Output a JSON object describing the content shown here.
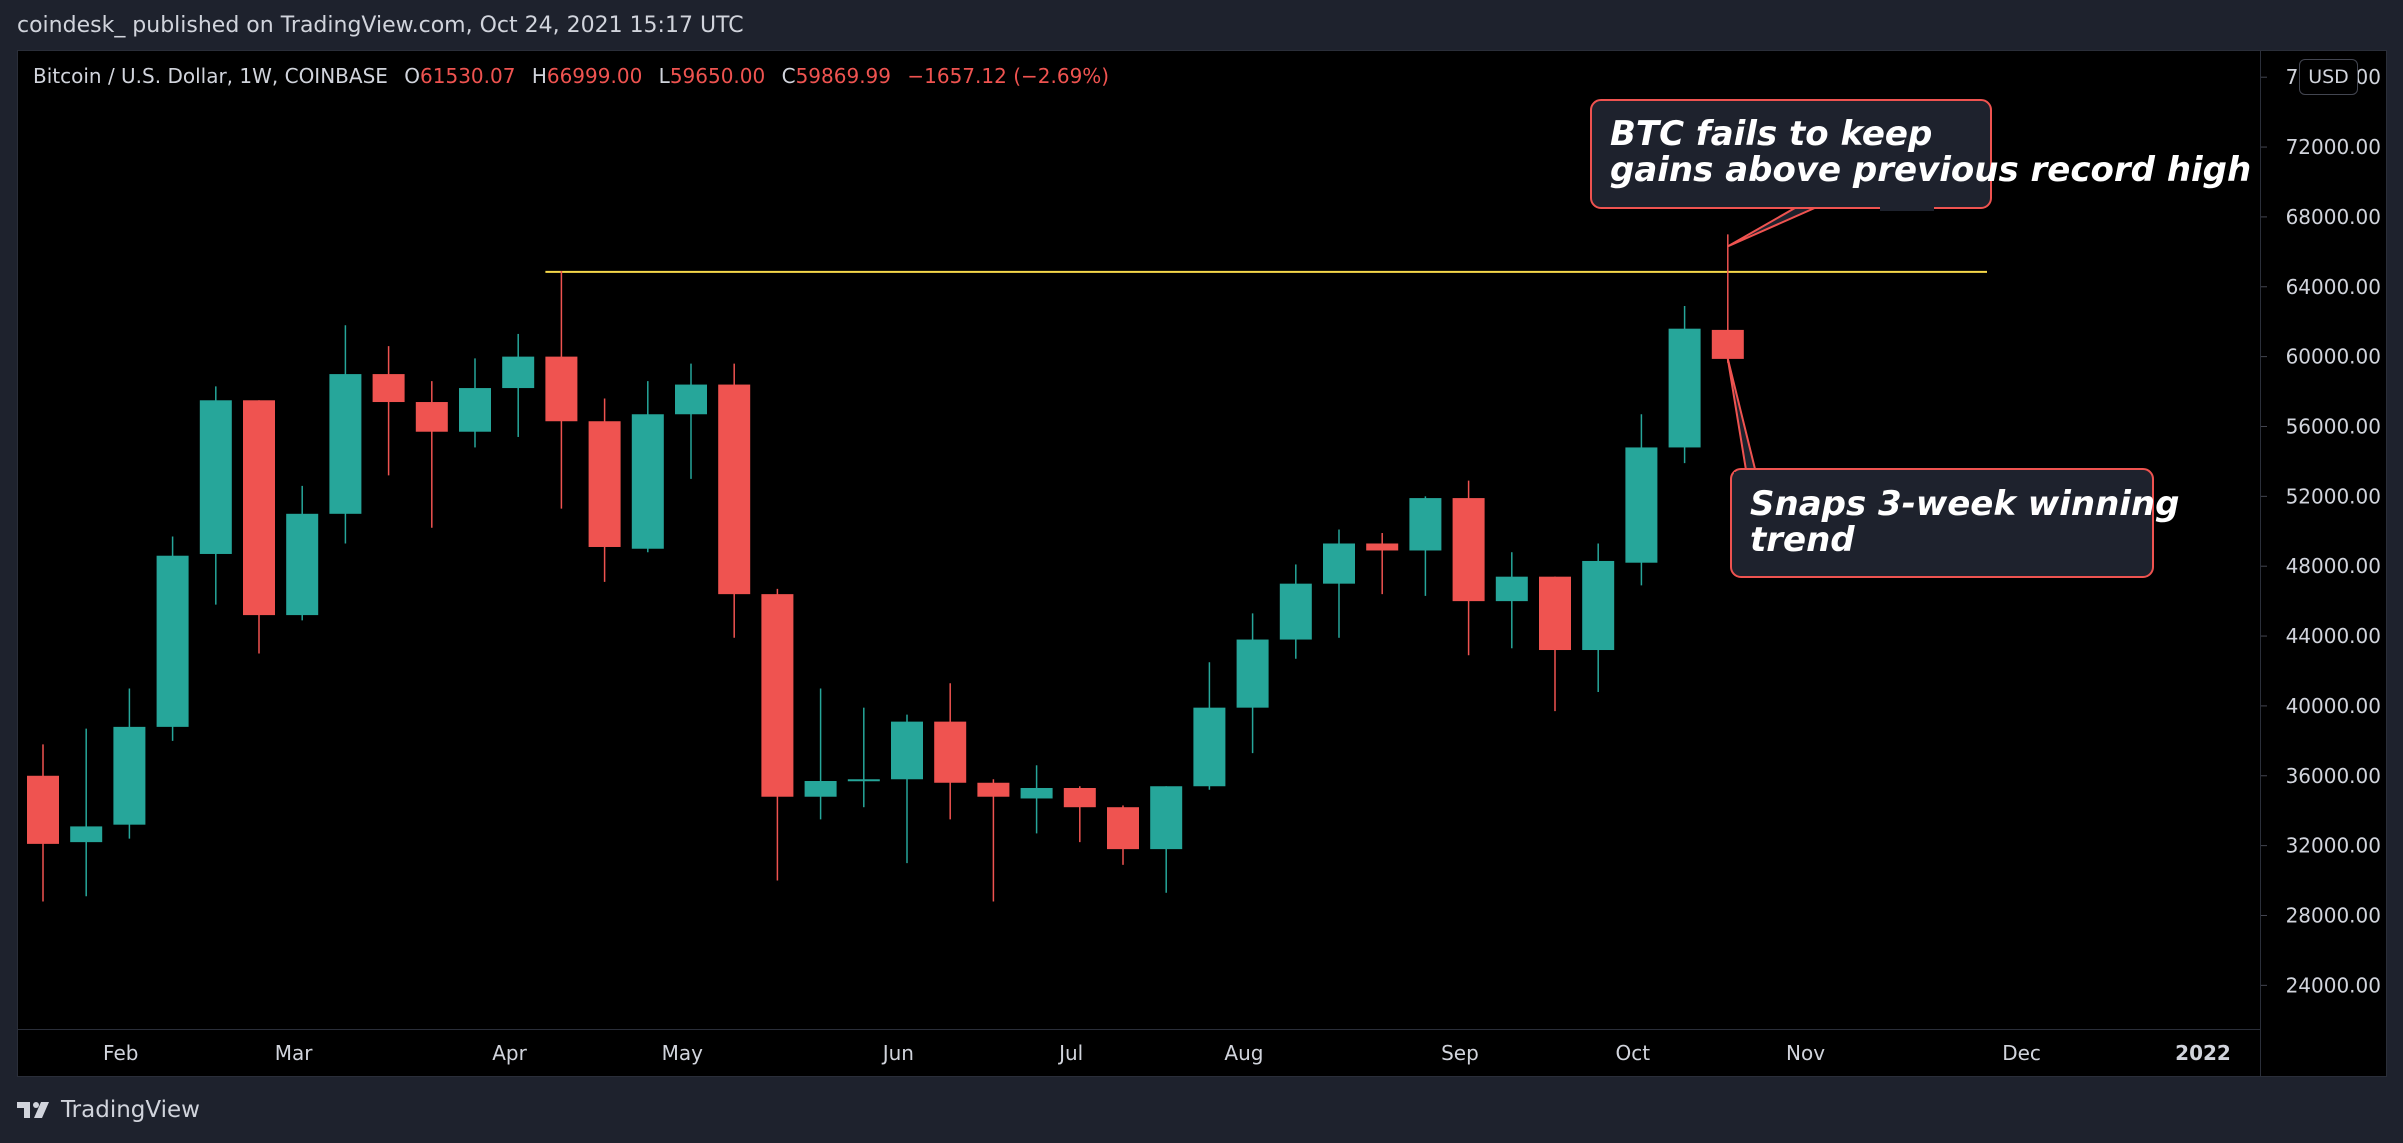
{
  "header": {
    "published": "coindesk_ published on TradingView.com, Oct 24, 2021 15:17 UTC"
  },
  "legend": {
    "symbol": "Bitcoin / U.S. Dollar, 1W, COINBASE",
    "open_label": "O",
    "open": "61530.07",
    "high_label": "H",
    "high": "66999.00",
    "low_label": "L",
    "low": "59650.00",
    "close_label": "C",
    "close": "59869.99",
    "change": "−1657.12 (−2.69%)"
  },
  "currency_button": "USD",
  "footer": {
    "brand": "TradingView",
    "logo_icon": "tradingview-logo-icon"
  },
  "colors": {
    "up": "#26a69a",
    "down": "#ef5350",
    "resistance": "#f6d84a",
    "callout_border": "#ef5350",
    "callout_bg": "#1e222d",
    "background": "#000000"
  },
  "chart_data": {
    "type": "candlestick",
    "interval": "1W",
    "ylim": [
      21500,
      77500
    ],
    "y_ticks": [
      24000,
      28000,
      32000,
      36000,
      40000,
      44000,
      48000,
      52000,
      56000,
      60000,
      64000,
      68000,
      72000,
      76000
    ],
    "y_tick_labels": [
      "24000.00",
      "28000.00",
      "32000.00",
      "36000.00",
      "40000.00",
      "44000.00",
      "48000.00",
      "52000.00",
      "56000.00",
      "60000.00",
      "64000.00",
      "68000.00",
      "72000.00",
      "76000.00"
    ],
    "x_labels": [
      {
        "label": "Feb",
        "pos": 1.8
      },
      {
        "label": "Mar",
        "pos": 5.8
      },
      {
        "label": "Apr",
        "pos": 10.8
      },
      {
        "label": "May",
        "pos": 14.8
      },
      {
        "label": "Jun",
        "pos": 19.8
      },
      {
        "label": "Jul",
        "pos": 23.8
      },
      {
        "label": "Aug",
        "pos": 27.8
      },
      {
        "label": "Sep",
        "pos": 32.8
      },
      {
        "label": "Oct",
        "pos": 36.8
      },
      {
        "label": "Nov",
        "pos": 40.8
      },
      {
        "label": "Dec",
        "pos": 45.8
      },
      {
        "label": "2022",
        "pos": 50.0
      }
    ],
    "candles": [
      {
        "o": 36000,
        "h": 37800,
        "l": 28800,
        "c": 32100
      },
      {
        "o": 32200,
        "h": 38700,
        "l": 29100,
        "c": 33100
      },
      {
        "o": 33200,
        "h": 41000,
        "l": 32400,
        "c": 38800
      },
      {
        "o": 38800,
        "h": 49700,
        "l": 38000,
        "c": 48600
      },
      {
        "o": 48700,
        "h": 58300,
        "l": 45800,
        "c": 57500
      },
      {
        "o": 57500,
        "h": 57500,
        "l": 43000,
        "c": 45200
      },
      {
        "o": 45200,
        "h": 52600,
        "l": 44900,
        "c": 51000
      },
      {
        "o": 51000,
        "h": 61800,
        "l": 49300,
        "c": 59000
      },
      {
        "o": 59000,
        "h": 60600,
        "l": 53200,
        "c": 57400
      },
      {
        "o": 57400,
        "h": 58600,
        "l": 50200,
        "c": 55700
      },
      {
        "o": 55700,
        "h": 59900,
        "l": 54800,
        "c": 58200
      },
      {
        "o": 58200,
        "h": 61300,
        "l": 55400,
        "c": 60000
      },
      {
        "o": 60000,
        "h": 64900,
        "l": 51300,
        "c": 56300
      },
      {
        "o": 56300,
        "h": 57600,
        "l": 47100,
        "c": 49100
      },
      {
        "o": 49000,
        "h": 58600,
        "l": 48800,
        "c": 56700
      },
      {
        "o": 56700,
        "h": 59600,
        "l": 53000,
        "c": 58400
      },
      {
        "o": 58400,
        "h": 59600,
        "l": 43900,
        "c": 46400
      },
      {
        "o": 46400,
        "h": 46700,
        "l": 30000,
        "c": 34800
      },
      {
        "o": 34800,
        "h": 41000,
        "l": 33500,
        "c": 35700
      },
      {
        "o": 35700,
        "h": 39900,
        "l": 34200,
        "c": 35800
      },
      {
        "o": 35800,
        "h": 39500,
        "l": 31000,
        "c": 39100
      },
      {
        "o": 39100,
        "h": 41300,
        "l": 33500,
        "c": 35600
      },
      {
        "o": 35600,
        "h": 35800,
        "l": 28800,
        "c": 34800
      },
      {
        "o": 34700,
        "h": 36600,
        "l": 32700,
        "c": 35300
      },
      {
        "o": 35300,
        "h": 35400,
        "l": 32200,
        "c": 34200
      },
      {
        "o": 34200,
        "h": 34300,
        "l": 30900,
        "c": 31800
      },
      {
        "o": 31800,
        "h": 35400,
        "l": 29300,
        "c": 35400
      },
      {
        "o": 35400,
        "h": 42500,
        "l": 35200,
        "c": 39900
      },
      {
        "o": 39900,
        "h": 45300,
        "l": 37300,
        "c": 43800
      },
      {
        "o": 43800,
        "h": 48100,
        "l": 42700,
        "c": 47000
      },
      {
        "o": 47000,
        "h": 50100,
        "l": 43900,
        "c": 49300
      },
      {
        "o": 49300,
        "h": 49900,
        "l": 46400,
        "c": 48900
      },
      {
        "o": 48900,
        "h": 52000,
        "l": 46300,
        "c": 51900
      },
      {
        "o": 51900,
        "h": 52900,
        "l": 42900,
        "c": 46000
      },
      {
        "o": 46000,
        "h": 48800,
        "l": 43300,
        "c": 47400
      },
      {
        "o": 47400,
        "h": 47400,
        "l": 39700,
        "c": 43200
      },
      {
        "o": 43200,
        "h": 49300,
        "l": 40800,
        "c": 48300
      },
      {
        "o": 48200,
        "h": 56700,
        "l": 46900,
        "c": 54800
      },
      {
        "o": 54800,
        "h": 62900,
        "l": 53900,
        "c": 61600
      },
      {
        "o": 61530.07,
        "h": 66999.0,
        "l": 59650.0,
        "c": 59869.99
      }
    ],
    "resistance_line": {
      "price": 64850,
      "from": 12,
      "to": 45
    },
    "annotations": [
      {
        "text_lines": [
          "BTC fails to keep",
          "gains above previous record high"
        ]
      },
      {
        "text_lines": [
          "Snaps 3-week winning",
          "trend"
        ]
      }
    ]
  }
}
